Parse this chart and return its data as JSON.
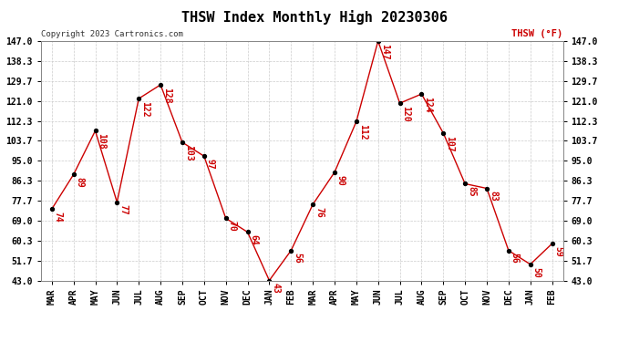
{
  "title": "THSW Index Monthly High 20230306",
  "copyright": "Copyright 2023 Cartronics.com",
  "legend_label": "THSW (°F)",
  "categories": [
    "MAR",
    "APR",
    "MAY",
    "JUN",
    "JUL",
    "AUG",
    "SEP",
    "OCT",
    "NOV",
    "DEC",
    "JAN",
    "FEB",
    "MAR",
    "APR",
    "MAY",
    "JUN",
    "JUL",
    "AUG",
    "SEP",
    "OCT",
    "NOV",
    "DEC",
    "JAN",
    "FEB"
  ],
  "values": [
    74,
    89,
    108,
    77,
    122,
    128,
    103,
    97,
    70,
    64,
    43,
    56,
    76,
    90,
    112,
    147,
    120,
    124,
    107,
    85,
    83,
    56,
    50,
    59
  ],
  "line_color": "#cc0000",
  "marker_color": "#000000",
  "background_color": "#ffffff",
  "grid_color": "#cccccc",
  "ylim": [
    43.0,
    147.0
  ],
  "yticks": [
    43.0,
    51.7,
    60.3,
    69.0,
    77.7,
    86.3,
    95.0,
    103.7,
    112.3,
    121.0,
    129.7,
    138.3,
    147.0
  ],
  "title_fontsize": 11,
  "label_fontsize": 7,
  "annotation_fontsize": 7,
  "copyright_fontsize": 6.5,
  "legend_fontsize": 7.5
}
